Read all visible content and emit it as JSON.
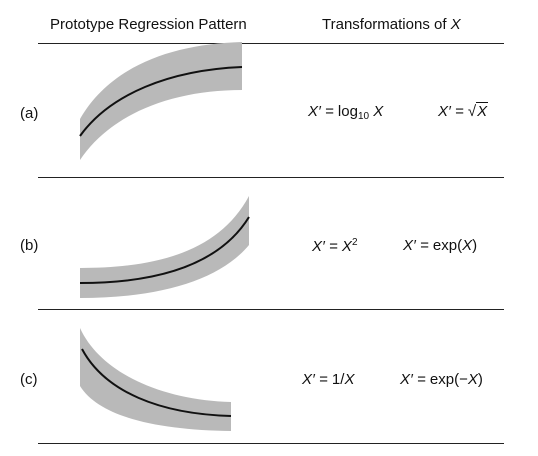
{
  "header": {
    "left_label": "Prototype Regression Pattern",
    "right_label_prefix": "Transformations of",
    "right_label_var": "X"
  },
  "rows": [
    {
      "label": "(a)",
      "pattern": "concave increasing",
      "transform_1": {
        "lhs": "X′ = ",
        "fn": "log",
        "sub": "10",
        "arg": " X"
      },
      "transform_2": {
        "lhs": "X′ = ",
        "radical": "√",
        "arg": "X"
      }
    },
    {
      "label": "(b)",
      "pattern": "convex increasing",
      "transform_1": {
        "lhs": "X′ = ",
        "base": "X",
        "sup": "2"
      },
      "transform_2": {
        "lhs": "X′ = ",
        "fn": "exp(",
        "arg": "X",
        "close": ")"
      }
    },
    {
      "label": "(c)",
      "pattern": "convex decreasing",
      "transform_1": {
        "lhs": "X′ = ",
        "text": "1/",
        "arg": "X"
      },
      "transform_2": {
        "lhs": "X′ = ",
        "fn": "exp(−",
        "arg": "X",
        "close": ")"
      }
    }
  ],
  "colors": {
    "band": "#b9b9b9",
    "curve": "#111111",
    "rule": "#222222"
  }
}
